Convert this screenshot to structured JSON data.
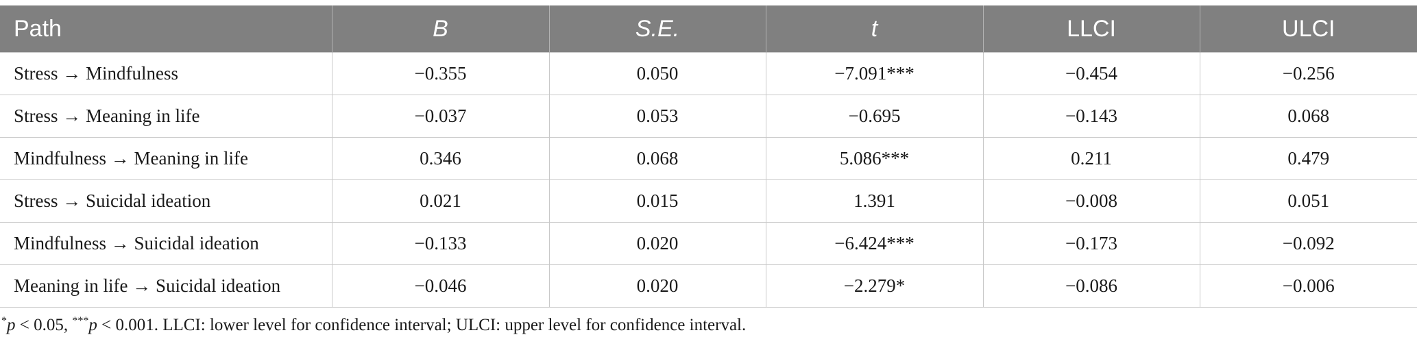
{
  "table": {
    "headers": [
      "Path",
      "B",
      "S.E.",
      "t",
      "LLCI",
      "ULCI"
    ],
    "rows": [
      [
        "Stress → Mindfulness",
        "−0.355",
        "0.050",
        "−7.091***",
        "−0.454",
        "−0.256"
      ],
      [
        "Stress → Meaning in life",
        "−0.037",
        "0.053",
        "−0.695",
        "−0.143",
        "0.068"
      ],
      [
        "Mindfulness → Meaning in life",
        "0.346",
        "0.068",
        "5.086***",
        "0.211",
        "0.479"
      ],
      [
        "Stress → Suicidal ideation",
        "0.021",
        "0.015",
        "1.391",
        "−0.008",
        "0.051"
      ],
      [
        "Mindfulness → Suicidal ideation",
        "−0.133",
        "0.020",
        "−6.424***",
        "−0.173",
        "−0.092"
      ],
      [
        "Meaning in life → Suicidal ideation",
        "−0.046",
        "0.020",
        "−2.279*",
        "−0.086",
        "−0.006"
      ]
    ]
  },
  "footnote": {
    "sig1_mark": "*",
    "sig1_p": "p",
    "sig1_cond": " < 0.05, ",
    "sig2_mark": "***",
    "sig2_p": "p",
    "sig2_cond": " < 0.001. ",
    "definitions": "LLCI: lower level for confidence interval; ULCI: upper level for confidence interval."
  }
}
